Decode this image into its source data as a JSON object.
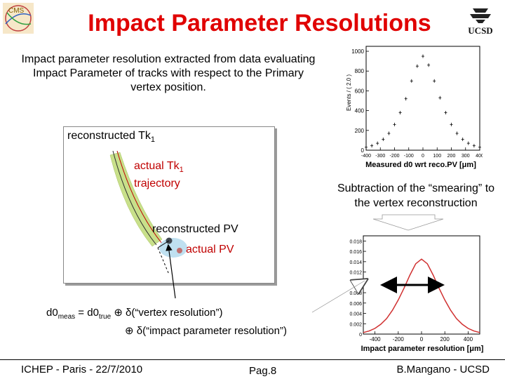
{
  "slide": {
    "title": "Impact Parameter Resolutions",
    "intro": "Impact parameter resolution extracted from data evaluating Impact Parameter of tracks with respect to the Primary vertex position.",
    "subtraction_note": "Subtraction of the “smearing” to the vertex reconstruction"
  },
  "diagram": {
    "reco_track_base": "reconstructed Tk",
    "reco_track_sub": "1",
    "actual_track_line1_base": "actual Tk",
    "actual_track_line1_sub": "1",
    "actual_track_line2": "trajectory",
    "reco_pv": "reconstructed PV",
    "actual_pv": "actual PV"
  },
  "formula": {
    "lhs": "d0",
    "lhs_sub": "meas",
    "equals": " =  d0",
    "true_sub": "true",
    "term1": " ⊕ δ(“vertex resolution”)",
    "term2": "⊕ δ(“impact parameter resolution”)"
  },
  "plot_top": {
    "caption": "Measured d0 wrt reco.PV [μm]",
    "y_label": "Events / ( 2.0 )",
    "y_ticks": [
      "1000",
      "800",
      "600",
      "400",
      "200",
      "0"
    ],
    "x_ticks": [
      "-400",
      "-300",
      "-200",
      "-100",
      "0",
      "100",
      "200",
      "300",
      "400"
    ]
  },
  "plot_bottom": {
    "caption": "Impact parameter resolution [μm]",
    "y_ticks": [
      "0.018",
      "0.016",
      "0.014",
      "0.012",
      "0.01",
      "0.008",
      "0.006",
      "0.004",
      "0.002",
      "0"
    ],
    "x_ticks": [
      "-400",
      "-200",
      "0",
      "200",
      "400"
    ]
  },
  "footer": {
    "left": "ICHEP - Paris - 22/7/2010",
    "center": "Pag.8",
    "right": "B.Mangano - UCSD"
  },
  "logos": {
    "right_text": "UCSD"
  },
  "colors": {
    "title": "#e00000",
    "accent_red": "#c00000",
    "track_band": "#c8e08a",
    "pv_blob": "#bfe0f0"
  },
  "chart_data": [
    {
      "type": "scatter",
      "title": "",
      "xlabel": "Measured d0 wrt reco.PV [μm]",
      "ylabel": "Events / ( 2.0 )",
      "xlim": [
        -400,
        400
      ],
      "ylim": [
        0,
        1050
      ],
      "x": [
        -400,
        -360,
        -320,
        -280,
        -240,
        -200,
        -160,
        -120,
        -80,
        -40,
        0,
        40,
        80,
        120,
        160,
        200,
        240,
        280,
        320,
        360,
        400
      ],
      "y": [
        30,
        45,
        70,
        110,
        170,
        260,
        380,
        520,
        700,
        850,
        950,
        860,
        700,
        530,
        380,
        260,
        170,
        110,
        70,
        45,
        30
      ]
    },
    {
      "type": "line",
      "title": "",
      "xlabel": "Impact parameter resolution [μm]",
      "ylabel": "",
      "xlim": [
        -500,
        500
      ],
      "ylim": [
        0,
        0.019
      ],
      "x": [
        -500,
        -450,
        -400,
        -350,
        -300,
        -250,
        -200,
        -150,
        -100,
        -50,
        0,
        50,
        100,
        150,
        200,
        250,
        300,
        350,
        400,
        450,
        500
      ],
      "y": [
        0.0003,
        0.0006,
        0.0011,
        0.0019,
        0.003,
        0.0046,
        0.0066,
        0.0089,
        0.0114,
        0.0136,
        0.0145,
        0.0136,
        0.0114,
        0.0089,
        0.0066,
        0.0046,
        0.003,
        0.0019,
        0.0011,
        0.0006,
        0.0003
      ]
    }
  ]
}
